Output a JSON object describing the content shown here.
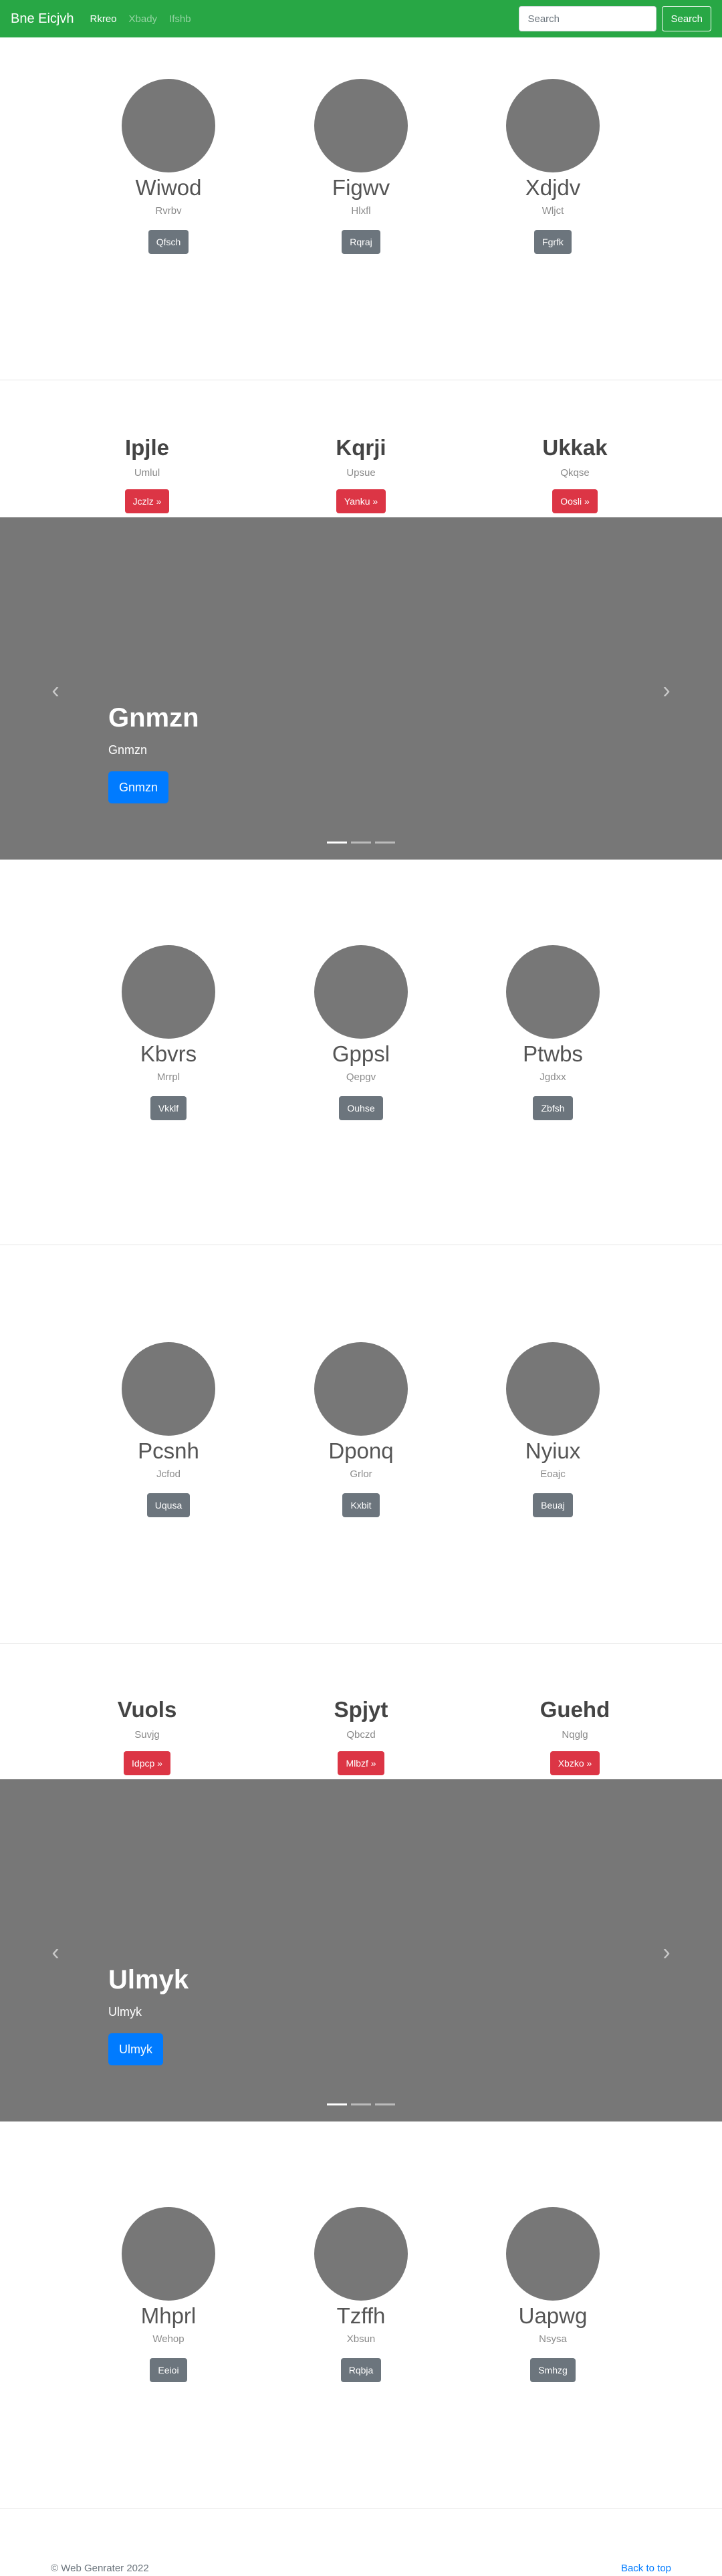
{
  "navbar": {
    "brand": "Bne Eicjvh",
    "links": [
      {
        "label": "Rkreo",
        "active": true
      },
      {
        "label": "Xbady",
        "active": false
      },
      {
        "label": "Ifshb",
        "active": false
      }
    ],
    "search_placeholder": "Search",
    "search_button": "Search"
  },
  "profiles_1": [
    {
      "name": "Wiwod",
      "sub": "Rvrbv",
      "button": "Qfsch"
    },
    {
      "name": "Figwv",
      "sub": "Hlxfl",
      "button": "Rqraj"
    },
    {
      "name": "Xdjdv",
      "sub": "Wljct",
      "button": "Fgrfk"
    }
  ],
  "features_1": [
    {
      "title": "Ipjle",
      "sub": "Umlul",
      "button": "Jczlz »"
    },
    {
      "title": "Kqrji",
      "sub": "Upsue",
      "button": "Yanku »"
    },
    {
      "title": "Ukkak",
      "sub": "Qkqse",
      "button": "Oosli »"
    }
  ],
  "carousel_1": {
    "title": "Gnmzn",
    "sub": "Gnmzn",
    "button": "Gnmzn",
    "prev": "‹",
    "next": "›"
  },
  "profiles_2": [
    {
      "name": "Kbvrs",
      "sub": "Mrrpl",
      "button": "Vkklf"
    },
    {
      "name": "Gppsl",
      "sub": "Qepgv",
      "button": "Ouhse"
    },
    {
      "name": "Ptwbs",
      "sub": "Jgdxx",
      "button": "Zbfsh"
    }
  ],
  "profiles_3": [
    {
      "name": "Pcsnh",
      "sub": "Jcfod",
      "button": "Uqusa"
    },
    {
      "name": "Dponq",
      "sub": "Grlor",
      "button": "Kxbit"
    },
    {
      "name": "Nyiux",
      "sub": "Eoajc",
      "button": "Beuaj"
    }
  ],
  "features_2": [
    {
      "title": "Vuols",
      "sub": "Suvjg",
      "button": "Idpcp »"
    },
    {
      "title": "Spjyt",
      "sub": "Qbczd",
      "button": "Mlbzf »"
    },
    {
      "title": "Guehd",
      "sub": "Nqglg",
      "button": "Xbzko »"
    }
  ],
  "carousel_2": {
    "title": "Ulmyk",
    "sub": "Ulmyk",
    "button": "Ulmyk",
    "prev": "‹",
    "next": "›"
  },
  "profiles_4": [
    {
      "name": "Mhprl",
      "sub": "Wehop",
      "button": "Eeioi"
    },
    {
      "name": "Tzffh",
      "sub": "Xbsun",
      "button": "Rqbja"
    },
    {
      "name": "Uapwg",
      "sub": "Nsysa",
      "button": "Smhzg"
    }
  ],
  "footer": {
    "copyright": "© Web Genrater 2022",
    "back_to_top": "Back to top"
  },
  "colors": {
    "navbar": "#28a745",
    "placeholder": "#777777",
    "danger": "#dc3545",
    "primary": "#007bff",
    "secondary": "#6c757d"
  }
}
